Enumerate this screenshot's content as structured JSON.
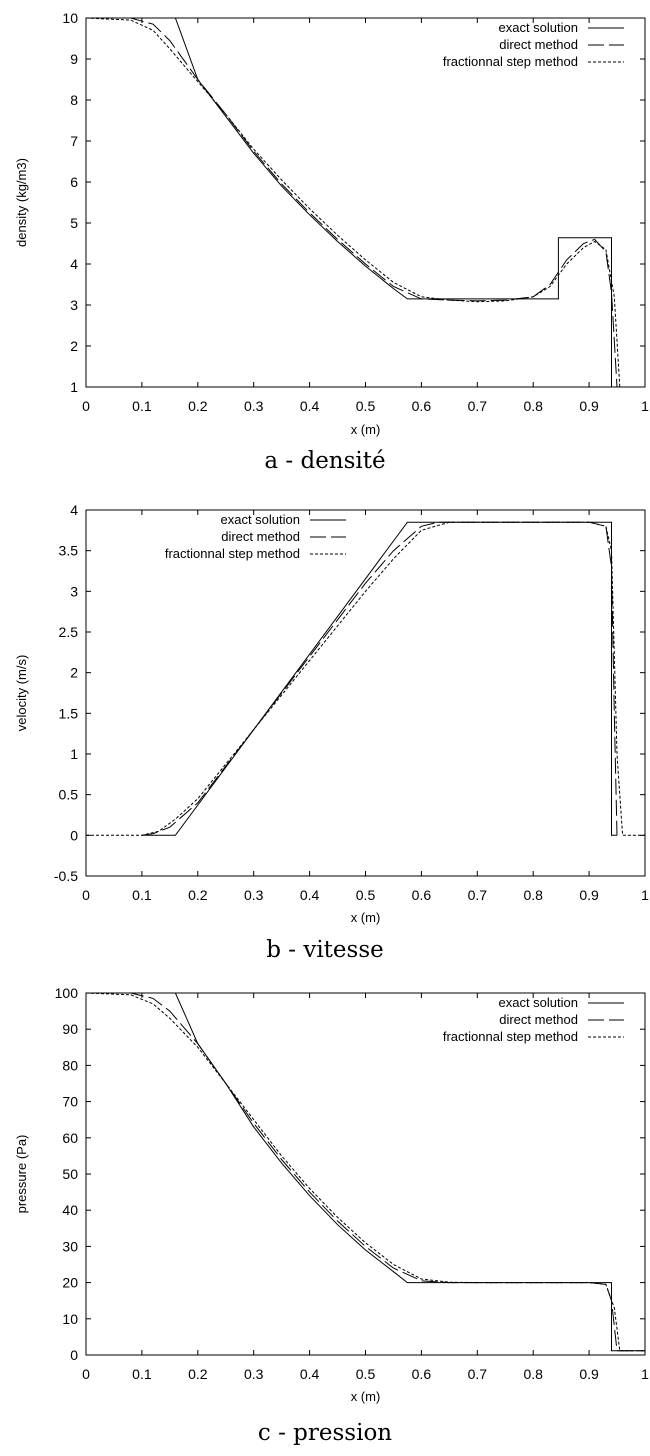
{
  "chart_data": [
    {
      "type": "line",
      "caption": "a - densité",
      "xlabel": "x (m)",
      "ylabel": "density (kg/m3)",
      "xlim": [
        0,
        1
      ],
      "ylim": [
        1,
        10
      ],
      "xticks": [
        "0",
        "0.1",
        "0.2",
        "0.3",
        "0.4",
        "0.5",
        "0.6",
        "0.7",
        "0.8",
        "0.9",
        "1"
      ],
      "yticks": [
        "1",
        "2",
        "3",
        "4",
        "5",
        "6",
        "7",
        "8",
        "9",
        "10"
      ],
      "legend": "top-right",
      "series": [
        {
          "name": "exact solution",
          "style": "solid",
          "x": [
            0,
            0.16,
            0.2,
            0.25,
            0.3,
            0.35,
            0.4,
            0.45,
            0.5,
            0.55,
            0.575,
            0.845,
            0.845,
            0.94,
            0.94,
            1
          ],
          "y": [
            10,
            10,
            8.5,
            7.6,
            6.7,
            5.9,
            5.2,
            4.55,
            3.95,
            3.4,
            3.15,
            3.15,
            4.64,
            4.64,
            1,
            1
          ]
        },
        {
          "name": "direct method",
          "style": "dashed",
          "x": [
            0,
            0.08,
            0.12,
            0.15,
            0.2,
            0.25,
            0.3,
            0.35,
            0.4,
            0.45,
            0.5,
            0.55,
            0.6,
            0.65,
            0.7,
            0.75,
            0.8,
            0.83,
            0.86,
            0.89,
            0.91,
            0.93,
            0.94,
            0.95,
            1
          ],
          "y": [
            10,
            10,
            9.85,
            9.45,
            8.5,
            7.65,
            6.75,
            5.95,
            5.25,
            4.6,
            4.0,
            3.45,
            3.15,
            3.12,
            3.1,
            3.12,
            3.2,
            3.5,
            4.1,
            4.5,
            4.6,
            4.3,
            3.3,
            1,
            1
          ]
        },
        {
          "name": "fractionnal step method",
          "style": "dotted",
          "x": [
            0,
            0.08,
            0.12,
            0.15,
            0.2,
            0.25,
            0.3,
            0.35,
            0.4,
            0.45,
            0.5,
            0.55,
            0.6,
            0.65,
            0.7,
            0.75,
            0.8,
            0.83,
            0.86,
            0.89,
            0.91,
            0.93,
            0.945,
            0.955,
            1
          ],
          "y": [
            10,
            9.95,
            9.7,
            9.25,
            8.45,
            7.65,
            6.8,
            6.05,
            5.35,
            4.7,
            4.1,
            3.55,
            3.2,
            3.12,
            3.08,
            3.1,
            3.2,
            3.45,
            4.0,
            4.4,
            4.55,
            4.35,
            3.2,
            1,
            1
          ]
        }
      ]
    },
    {
      "type": "line",
      "caption": "b - vitesse",
      "xlabel": "x (m)",
      "ylabel": "velocity (m/s)",
      "xlim": [
        0,
        1
      ],
      "ylim": [
        -0.5,
        4
      ],
      "xticks": [
        "0",
        "0.1",
        "0.2",
        "0.3",
        "0.4",
        "0.5",
        "0.6",
        "0.7",
        "0.8",
        "0.9",
        "1"
      ],
      "yticks": [
        "-0.5",
        "0",
        "0.5",
        "1",
        "1.5",
        "2",
        "2.5",
        "3",
        "3.5",
        "4"
      ],
      "legend": "top-left",
      "series": [
        {
          "name": "exact solution",
          "style": "solid",
          "x": [
            0.1,
            0.16,
            0.575,
            0.94,
            0.94,
            0.95
          ],
          "y": [
            0,
            0,
            3.85,
            3.85,
            0,
            0
          ]
        },
        {
          "name": "direct method",
          "style": "dashed",
          "x": [
            0.1,
            0.12,
            0.15,
            0.2,
            0.3,
            0.4,
            0.5,
            0.55,
            0.6,
            0.63,
            0.65,
            0.9,
            0.93,
            0.94,
            0.945,
            0.95
          ],
          "y": [
            0,
            0.02,
            0.1,
            0.4,
            1.3,
            2.2,
            3.1,
            3.5,
            3.8,
            3.85,
            3.85,
            3.85,
            3.8,
            3.3,
            1.5,
            0
          ]
        },
        {
          "name": "fractionnal step method",
          "style": "dotted",
          "x": [
            0,
            0.1,
            0.13,
            0.16,
            0.2,
            0.3,
            0.4,
            0.5,
            0.55,
            0.6,
            0.65,
            0.7,
            0.9,
            0.93,
            0.94,
            0.95,
            0.96,
            1
          ],
          "y": [
            0,
            0,
            0.05,
            0.2,
            0.45,
            1.3,
            2.15,
            3.0,
            3.4,
            3.75,
            3.85,
            3.85,
            3.85,
            3.8,
            3.5,
            1.0,
            0,
            0
          ]
        }
      ]
    },
    {
      "type": "line",
      "caption": "c - pression",
      "xlabel": "x (m)",
      "ylabel": "pressure (Pa)",
      "xlim": [
        0,
        1
      ],
      "ylim": [
        0,
        100
      ],
      "xticks": [
        "0",
        "0.1",
        "0.2",
        "0.3",
        "0.4",
        "0.5",
        "0.6",
        "0.7",
        "0.8",
        "0.9",
        "1"
      ],
      "yticks": [
        "0",
        "10",
        "20",
        "30",
        "40",
        "50",
        "60",
        "70",
        "80",
        "90",
        "100"
      ],
      "legend": "top-right",
      "series": [
        {
          "name": "exact solution",
          "style": "solid",
          "x": [
            0,
            0.16,
            0.2,
            0.25,
            0.3,
            0.35,
            0.4,
            0.45,
            0.5,
            0.55,
            0.575,
            0.94,
            0.94,
            1
          ],
          "y": [
            100,
            100,
            86,
            75,
            63,
            53,
            44,
            36,
            29,
            23,
            20,
            20,
            1.2,
            1.2
          ]
        },
        {
          "name": "direct method",
          "style": "dashed",
          "x": [
            0,
            0.08,
            0.12,
            0.15,
            0.2,
            0.25,
            0.3,
            0.35,
            0.4,
            0.45,
            0.5,
            0.55,
            0.6,
            0.65,
            0.7,
            0.9,
            0.93,
            0.94,
            0.95,
            1
          ],
          "y": [
            100,
            100,
            98.5,
            95,
            86,
            75,
            64,
            54,
            45,
            37,
            30,
            24,
            20.5,
            20,
            20,
            20,
            19.5,
            15,
            1.2,
            1.2
          ]
        },
        {
          "name": "fractionnal step method",
          "style": "dotted",
          "x": [
            0,
            0.08,
            0.12,
            0.15,
            0.2,
            0.25,
            0.3,
            0.35,
            0.4,
            0.45,
            0.5,
            0.55,
            0.6,
            0.65,
            0.7,
            0.9,
            0.93,
            0.945,
            0.955,
            1
          ],
          "y": [
            100,
            99.5,
            97,
            93,
            85,
            75,
            65,
            55,
            46,
            38,
            31,
            25,
            21,
            20.1,
            20,
            20,
            19.5,
            13,
            1.2,
            1.2
          ]
        }
      ]
    }
  ]
}
